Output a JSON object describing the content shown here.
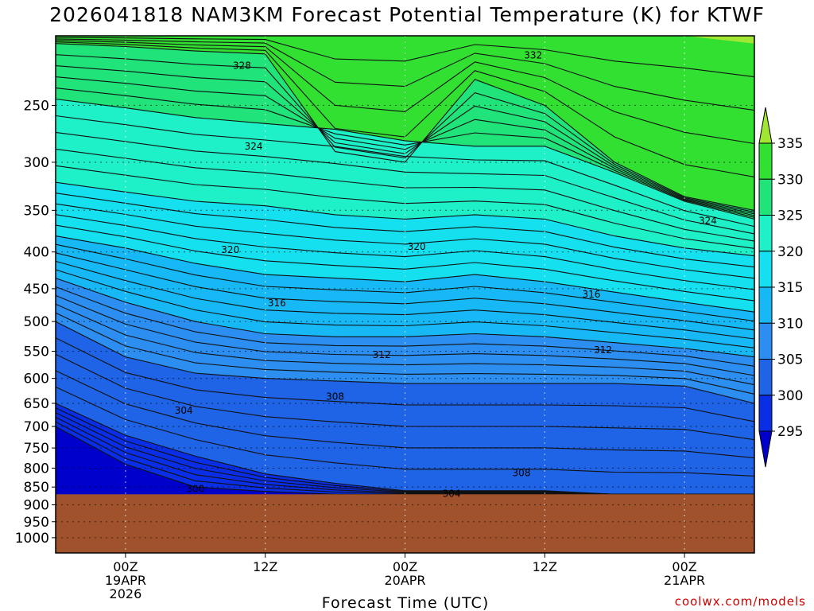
{
  "chart_data": {
    "type": "heatmap",
    "title": "2026041818 NAM3KM Forecast Potential Temperature (K) for KTWF",
    "xlabel": "Forecast Time (UTC)",
    "ylabel": "",
    "y_scale": "log",
    "y_axis_inverted": true,
    "ylim": [
      1050,
      200
    ],
    "y_ticks": [
      250,
      300,
      350,
      400,
      450,
      500,
      550,
      600,
      650,
      700,
      750,
      800,
      850,
      900,
      950,
      1000
    ],
    "x_ticks": [
      {
        "hour": 6,
        "line1": "00Z",
        "line2": "19APR",
        "line3": "2026"
      },
      {
        "hour": 18,
        "line1": "12Z",
        "line2": "",
        "line3": ""
      },
      {
        "hour": 30,
        "line1": "00Z",
        "line2": "20APR",
        "line3": ""
      },
      {
        "hour": 42,
        "line1": "12Z",
        "line2": "",
        "line3": ""
      },
      {
        "hour": 54,
        "line1": "00Z",
        "line2": "21APR",
        "line3": ""
      }
    ],
    "xlim_hours": [
      0,
      60
    ],
    "grid": true,
    "surface_pressure_hpa": 870,
    "colorbar": {
      "levels": [
        295,
        300,
        305,
        310,
        315,
        320,
        325,
        330,
        335
      ],
      "colors": [
        "#0000cc",
        "#0a2ee6",
        "#1f63e6",
        "#2b8ef0",
        "#16b8f5",
        "#14e0f0",
        "#1ef0c8",
        "#20e37a",
        "#32e032",
        "#a0e632"
      ],
      "placement": "right"
    },
    "contour_labels": [
      {
        "value": 332,
        "hour": 41,
        "p": 213
      },
      {
        "value": 328,
        "hour": 16,
        "p": 220
      },
      {
        "value": 324,
        "hour": 17,
        "p": 285
      },
      {
        "value": 324,
        "hour": 56,
        "p": 362
      },
      {
        "value": 320,
        "hour": 15,
        "p": 397
      },
      {
        "value": 320,
        "hour": 31,
        "p": 393
      },
      {
        "value": 316,
        "hour": 19,
        "p": 471
      },
      {
        "value": 316,
        "hour": 46,
        "p": 458
      },
      {
        "value": 312,
        "hour": 28,
        "p": 556
      },
      {
        "value": 312,
        "hour": 47,
        "p": 548
      },
      {
        "value": 308,
        "hour": 24,
        "p": 636
      },
      {
        "value": 308,
        "hour": 40,
        "p": 813
      },
      {
        "value": 304,
        "hour": 11,
        "p": 665
      },
      {
        "value": 304,
        "hour": 34,
        "p": 868
      },
      {
        "value": 300,
        "hour": 12,
        "p": 855
      }
    ],
    "band_bottoms_hpa": {
      "hours": [
        0,
        6,
        12,
        18,
        24,
        30,
        36,
        42,
        48,
        54,
        60
      ],
      "335": [
        200,
        200,
        200,
        200,
        200,
        200,
        200,
        200,
        200,
        200,
        205
      ],
      "330": [
        205,
        207,
        210,
        212,
        290,
        300,
        230,
        250,
        300,
        335,
        350
      ],
      "325": [
        245,
        252,
        260,
        265,
        270,
        280,
        285,
        285,
        310,
        340,
        360
      ],
      "320": [
        320,
        330,
        340,
        345,
        355,
        360,
        355,
        360,
        380,
        395,
        405
      ],
      "315": [
        380,
        395,
        415,
        430,
        435,
        440,
        430,
        440,
        455,
        470,
        485
      ],
      "310": [
        435,
        470,
        500,
        520,
        525,
        525,
        520,
        525,
        535,
        545,
        560
      ],
      "305": [
        500,
        560,
        590,
        600,
        605,
        610,
        610,
        610,
        610,
        615,
        650
      ],
      "300": [
        650,
        720,
        770,
        815,
        840,
        860,
        860,
        860,
        870,
        870,
        870
      ],
      "295": [
        700,
        790,
        850,
        862,
        870,
        870,
        870,
        870,
        870,
        870,
        870
      ]
    }
  },
  "credit": "coolwx.com/models"
}
